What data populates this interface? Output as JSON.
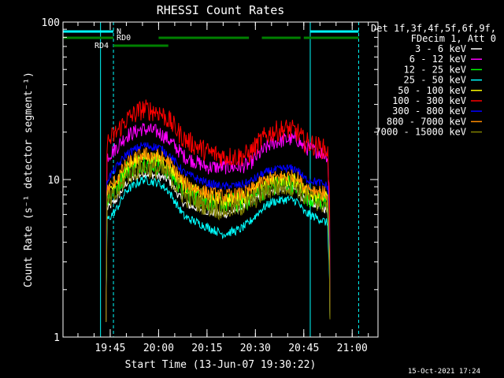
{
  "chart_data": {
    "type": "line",
    "title": "RHESSI Count Rates",
    "xlabel": "Start Time (13-Jun-07 19:30:22)",
    "ylabel": "Count Rate (s⁻¹ detector segment⁻¹)",
    "y_scale": "log",
    "ylim": [
      1,
      100
    ],
    "xlim": [
      "19:30:22",
      "21:08"
    ],
    "x_ticks": [
      "19:45",
      "20:00",
      "20:15",
      "20:30",
      "20:45",
      "21:00"
    ],
    "y_ticks": [
      "1",
      "10",
      "100"
    ],
    "timestamp": "15-Oct-2021 17:24",
    "legend": {
      "placement": "right",
      "header": [
        "Det 1f,3f,4f,5f,6f,9f,",
        "FDecim 1, Att 0"
      ]
    },
    "attenuator_bars": [
      {
        "label": "N",
        "color": "#00ffff",
        "segments": [
          [
            "19:30:22",
            "19:46"
          ],
          [
            "20:47",
            "21:02"
          ]
        ]
      },
      {
        "label": "RD0",
        "color": "#008000",
        "segments": [
          [
            "19:30:22",
            "19:46"
          ],
          [
            "20:00",
            "20:28"
          ],
          [
            "20:32",
            "20:44"
          ],
          [
            "20:45",
            "21:02"
          ]
        ]
      },
      {
        "label": "RD4",
        "color": "#008000",
        "segments": [
          [
            "19:46",
            "20:03"
          ]
        ]
      }
    ],
    "marker_lines": [
      {
        "time": "19:42",
        "style": "solid",
        "color": "#00ffff"
      },
      {
        "time": "19:46",
        "style": "dashed",
        "color": "#00ffff"
      },
      {
        "time": "20:47",
        "style": "solid",
        "color": "#00ffff"
      },
      {
        "time": "21:02",
        "style": "dashed",
        "color": "#00ffff"
      }
    ],
    "profile_times": [
      "19:44",
      "19:47",
      "19:50",
      "19:55",
      "20:00",
      "20:03",
      "20:08",
      "20:15",
      "20:20",
      "20:25",
      "20:28",
      "20:32",
      "20:35",
      "20:40",
      "20:43",
      "20:45",
      "20:50",
      "20:53"
    ],
    "series": [
      {
        "name": "3 - 6 keV",
        "color": "#ffffff",
        "values": [
          6.5,
          7.5,
          9.5,
          11,
          10.5,
          10,
          7,
          6.3,
          6.0,
          6.5,
          7.0,
          8.0,
          8.6,
          8.8,
          8.6,
          7.5,
          6.8,
          6.3
        ]
      },
      {
        "name": "6 - 12 keV",
        "color": "#ff00ff",
        "values": [
          14,
          16,
          19,
          21,
          20,
          18,
          14,
          12,
          12,
          12,
          12.5,
          15,
          17,
          18,
          18,
          16,
          15,
          14
        ]
      },
      {
        "name": "12 - 25 keV",
        "color": "#00ff00",
        "values": [
          7.5,
          9,
          11.5,
          13,
          12.5,
          11.5,
          8.5,
          7.3,
          7.0,
          7.2,
          7.5,
          8.5,
          9.0,
          9.4,
          9.2,
          8.0,
          7.4,
          7.0
        ]
      },
      {
        "name": "25 - 50 keV",
        "color": "#00ffff",
        "values": [
          5.5,
          6.5,
          8.5,
          10,
          9.5,
          8.5,
          5.8,
          5.0,
          4.5,
          4.8,
          5.3,
          6.5,
          7.2,
          7.5,
          7.3,
          6.2,
          5.6,
          5.2
        ]
      },
      {
        "name": "50 - 100 keV",
        "color": "#ffff00",
        "values": [
          8,
          9.5,
          12,
          14,
          13.5,
          12.5,
          9,
          7.8,
          7.4,
          7.6,
          8.0,
          9.2,
          9.8,
          10,
          9.8,
          8.6,
          7.9,
          7.4
        ]
      },
      {
        "name": "100 - 300 keV",
        "color": "#ff0000",
        "values": [
          17,
          20,
          24,
          28,
          27,
          24,
          18,
          15,
          14,
          14,
          14.5,
          18,
          20,
          21,
          20,
          17.5,
          16,
          15
        ]
      },
      {
        "name": "300 - 800 keV",
        "color": "#0000ff",
        "values": [
          10,
          12,
          14.5,
          16.5,
          16,
          14.5,
          11,
          9.5,
          9.0,
          9.2,
          9.6,
          10.8,
          11.4,
          11.8,
          11.6,
          10.2,
          9.5,
          9.0
        ]
      },
      {
        "name": "800 - 7000 keV",
        "color": "#ff8c00",
        "values": [
          8.5,
          10,
          12.5,
          14.5,
          14,
          13,
          9.5,
          8.2,
          7.8,
          8.0,
          8.4,
          9.6,
          10.2,
          10.5,
          10.3,
          9.0,
          8.4,
          7.9
        ]
      },
      {
        "name": "7000 - 15000 keV",
        "color": "#808000",
        "values": [
          7,
          8,
          10.5,
          12,
          11.5,
          10.8,
          7.8,
          6.8,
          6.4,
          6.7,
          7.1,
          8.1,
          8.8,
          9.1,
          8.9,
          7.8,
          7.2,
          6.7
        ]
      }
    ]
  }
}
